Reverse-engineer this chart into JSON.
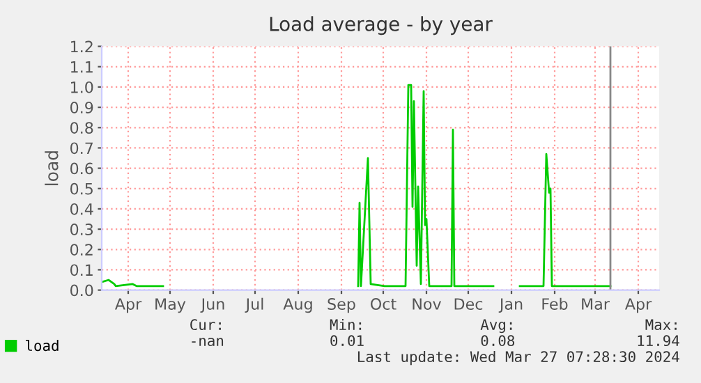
{
  "chart_data": {
    "type": "line",
    "title": "Load average - by year",
    "ylabel": "load",
    "x": [
      "2023-03-13",
      "2023-03-18",
      "2023-03-22",
      "2023-03-23",
      "2023-04-04",
      "2023-04-07",
      "2023-04-26",
      "2023-05-01",
      "2023-09-13",
      "2023-09-14",
      "2023-09-15",
      "2023-09-20",
      "2023-09-22",
      "2023-10-02",
      "2023-10-17",
      "2023-10-19",
      "2023-10-21",
      "2023-10-22",
      "2023-10-23",
      "2023-10-25",
      "2023-10-26",
      "2023-10-28",
      "2023-10-30",
      "2023-10-31",
      "2023-11-01",
      "2023-11-03",
      "2023-11-18",
      "2023-11-19",
      "2023-11-20",
      "2023-11-21",
      "2023-12-19",
      "2023-12-25",
      "2024-01-07",
      "2024-01-24",
      "2024-01-26",
      "2024-01-28",
      "2024-01-29",
      "2024-01-30",
      "2024-03-12"
    ],
    "series": [
      {
        "name": "load",
        "color": "#00cc00",
        "values": [
          0.04,
          0.05,
          0.03,
          0.02,
          0.03,
          0.02,
          0.02,
          null,
          0.02,
          0.43,
          0.02,
          0.65,
          0.03,
          0.02,
          0.02,
          1.01,
          1.01,
          0.41,
          0.93,
          0.12,
          0.51,
          0.03,
          0.98,
          0.32,
          0.35,
          0.02,
          0.02,
          0.02,
          0.79,
          0.02,
          0.02,
          null,
          0.02,
          0.02,
          0.67,
          0.48,
          0.5,
          0.02,
          0.02
        ]
      }
    ],
    "xlim": [
      "2023-03-13",
      "2024-04-16"
    ],
    "xticks": [
      {
        "value": "2023-04-01",
        "label": "Apr"
      },
      {
        "value": "2023-05-01",
        "label": "May"
      },
      {
        "value": "2023-06-01",
        "label": "Jun"
      },
      {
        "value": "2023-07-01",
        "label": "Jul"
      },
      {
        "value": "2023-08-01",
        "label": "Aug"
      },
      {
        "value": "2023-09-01",
        "label": "Sep"
      },
      {
        "value": "2023-10-01",
        "label": "Oct"
      },
      {
        "value": "2023-11-01",
        "label": "Nov"
      },
      {
        "value": "2023-12-01",
        "label": "Dec"
      },
      {
        "value": "2024-01-01",
        "label": "Jan"
      },
      {
        "value": "2024-02-01",
        "label": "Feb"
      },
      {
        "value": "2024-03-01",
        "label": "Mar"
      },
      {
        "value": "2024-04-01",
        "label": "Apr"
      }
    ],
    "ylim": [
      0,
      1.2
    ],
    "yticks": [
      {
        "value": 0,
        "label": "0.0"
      },
      {
        "value": 0.1,
        "label": "0.1"
      },
      {
        "value": 0.2,
        "label": "0.2"
      },
      {
        "value": 0.3,
        "label": "0.3"
      },
      {
        "value": 0.4,
        "label": "0.4"
      },
      {
        "value": 0.5,
        "label": "0.5"
      },
      {
        "value": 0.6,
        "label": "0.6"
      },
      {
        "value": 0.7,
        "label": "0.7"
      },
      {
        "value": 0.8,
        "label": "0.8"
      },
      {
        "value": 0.9,
        "label": "0.9"
      },
      {
        "value": 1.0,
        "label": "1.0"
      },
      {
        "value": 1.1,
        "label": "1.1"
      },
      {
        "value": 1.2,
        "label": "1.2"
      }
    ],
    "ref_lines": [
      {
        "axis": "x",
        "value": "2024-03-12",
        "color": "#888888"
      }
    ],
    "grid": true,
    "legend": "bottom left",
    "marker": "none",
    "line_style": "solid",
    "annotations": [
      "Cur:",
      "Min:",
      "Avg:",
      "Max:",
      "-nan",
      "0.01",
      "0.08",
      "11.94",
      "Last update: Wed Mar 27 07:28:30 2024"
    ]
  }
}
